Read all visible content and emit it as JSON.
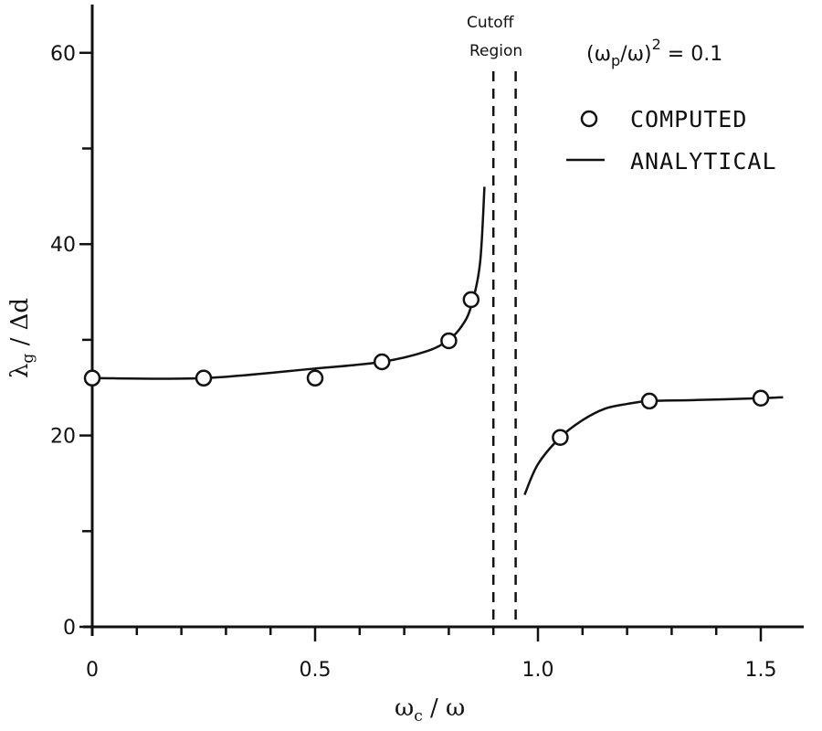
{
  "chart_data": {
    "type": "scatter",
    "title": "",
    "xlabel": "ωc / ω",
    "ylabel": "λg / Δd",
    "xlim": [
      0,
      1.6
    ],
    "ylim": [
      0,
      65
    ],
    "x_ticks": [
      "0",
      "0.5",
      "1.0",
      "1.5"
    ],
    "y_ticks": [
      "0",
      "20",
      "40",
      "60"
    ],
    "grid": false,
    "annotation_parameter": "(ωp/ω)² = 0.1",
    "annotation_cutoff": [
      "Cutoff",
      "Region"
    ],
    "cutoff_region": {
      "x_start": 0.9,
      "x_end": 0.95
    },
    "legend": {
      "position": "upper right",
      "entries": [
        {
          "marker": "circle",
          "label": "COMPUTED"
        },
        {
          "marker": "line",
          "label": "ANALYTICAL"
        }
      ]
    },
    "series": [
      {
        "name": "COMPUTED",
        "style": "open-circle",
        "x": [
          0.0,
          0.25,
          0.5,
          0.65,
          0.8,
          0.85,
          1.05,
          1.25,
          1.5
        ],
        "y": [
          26.0,
          26.0,
          26.0,
          27.7,
          29.9,
          34.2,
          19.8,
          23.6,
          23.9
        ]
      },
      {
        "name": "ANALYTICAL (below cutoff)",
        "style": "solid-line",
        "x": [
          0.0,
          0.25,
          0.5,
          0.65,
          0.75,
          0.8,
          0.83,
          0.85,
          0.87,
          0.88
        ],
        "y": [
          26.0,
          26.0,
          27.0,
          27.7,
          28.8,
          30.0,
          31.5,
          33.5,
          38.0,
          46.0
        ]
      },
      {
        "name": "ANALYTICAL (above cutoff)",
        "style": "solid-line",
        "x": [
          0.97,
          1.0,
          1.05,
          1.1,
          1.15,
          1.2,
          1.25,
          1.35,
          1.5,
          1.55
        ],
        "y": [
          13.8,
          17.0,
          19.8,
          21.6,
          22.8,
          23.3,
          23.6,
          23.7,
          23.9,
          24.0
        ]
      }
    ]
  }
}
